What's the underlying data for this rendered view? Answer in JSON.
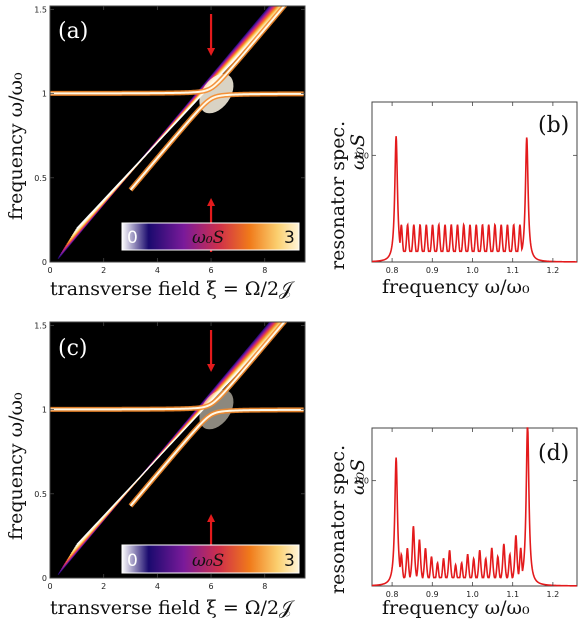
{
  "chart_data": [
    {
      "id": "a",
      "type": "heatmap",
      "panel_label": "(a)",
      "xlabel": "transverse field ξ = Ω/2𝒥",
      "ylabel": "frequency ω/ω₀",
      "xlim": [
        0,
        9.5
      ],
      "ylim": [
        0,
        1.52
      ],
      "xticks": [
        "0",
        "2",
        "4",
        "6",
        "8"
      ],
      "yticks": [
        "0",
        "0.5",
        "1",
        "1.5"
      ],
      "colorbar": {
        "min": "0",
        "max": "3",
        "label": "ω₀S",
        "colors": [
          "#ffffff",
          "#1a0a6e",
          "#7a1a9a",
          "#d0304a",
          "#f07a1a",
          "#fbd070",
          "#fff4d8"
        ]
      },
      "resonator_frequency": 1.0,
      "anticrossing_xi": 6.0,
      "arrow_x": 6.0,
      "annotation": "red arrows at ξ ≈ 6 marking the cut shown in (b)"
    },
    {
      "id": "b",
      "type": "line",
      "panel_label": "(b)",
      "xlabel": "frequency ω/ω₀",
      "ylabel": "resonator spec.",
      "ylabel2": "ω₀S",
      "xlim": [
        0.75,
        1.26
      ],
      "ylim": [
        0,
        150
      ],
      "xticks": [
        "0.8",
        "0.9",
        "1.0",
        "1.1",
        "1.2"
      ],
      "yticks": [
        "100"
      ],
      "series_color": "#e31a1c",
      "edge_peaks": [
        {
          "x": 0.81,
          "y": 118
        },
        {
          "x": 1.135,
          "y": 117
        }
      ],
      "comb": {
        "x_start": 0.823,
        "x_end": 1.118,
        "count": 20,
        "height": 35,
        "dip": 10
      }
    },
    {
      "id": "c",
      "type": "heatmap",
      "panel_label": "(c)",
      "xlabel": "transverse field ξ = Ω/2𝒥",
      "ylabel": "frequency ω/ω₀",
      "xlim": [
        0,
        9.5
      ],
      "ylim": [
        0,
        1.52
      ],
      "xticks": [
        "0",
        "2",
        "4",
        "6",
        "8"
      ],
      "yticks": [
        "0",
        "0.5",
        "1",
        "1.5"
      ],
      "colorbar": {
        "min": "0",
        "max": "3",
        "label": "ω₀S"
      },
      "resonator_frequency": 1.0,
      "anticrossing_xi": 6.0,
      "arrow_x": 6.0
    },
    {
      "id": "d",
      "type": "line",
      "panel_label": "(d)",
      "xlabel": "frequency ω/ω₀",
      "ylabel": "resonator spec.",
      "ylabel2": "ω₀S",
      "xlim": [
        0.75,
        1.26
      ],
      "ylim": [
        0,
        150
      ],
      "xticks": [
        "0.8",
        "0.9",
        "1.0",
        "1.1",
        "1.2"
      ],
      "yticks": [
        "100"
      ],
      "series_color": "#e31a1c",
      "edge_peaks": [
        {
          "x": 0.81,
          "y": 122
        },
        {
          "x": 1.137,
          "y": 155
        }
      ],
      "comb_irregular": [
        {
          "x": 0.823,
          "y": 30
        },
        {
          "x": 0.838,
          "y": 36
        },
        {
          "x": 0.853,
          "y": 57
        },
        {
          "x": 0.868,
          "y": 44
        },
        {
          "x": 0.883,
          "y": 36
        },
        {
          "x": 0.898,
          "y": 28
        },
        {
          "x": 0.913,
          "y": 22
        },
        {
          "x": 0.928,
          "y": 26
        },
        {
          "x": 0.943,
          "y": 34
        },
        {
          "x": 0.958,
          "y": 20
        },
        {
          "x": 0.973,
          "y": 22
        },
        {
          "x": 0.988,
          "y": 30
        },
        {
          "x": 1.003,
          "y": 26
        },
        {
          "x": 1.018,
          "y": 34
        },
        {
          "x": 1.033,
          "y": 26
        },
        {
          "x": 1.048,
          "y": 36
        },
        {
          "x": 1.063,
          "y": 28
        },
        {
          "x": 1.078,
          "y": 40
        },
        {
          "x": 1.093,
          "y": 30
        },
        {
          "x": 1.108,
          "y": 48
        },
        {
          "x": 1.12,
          "y": 36
        }
      ]
    }
  ]
}
